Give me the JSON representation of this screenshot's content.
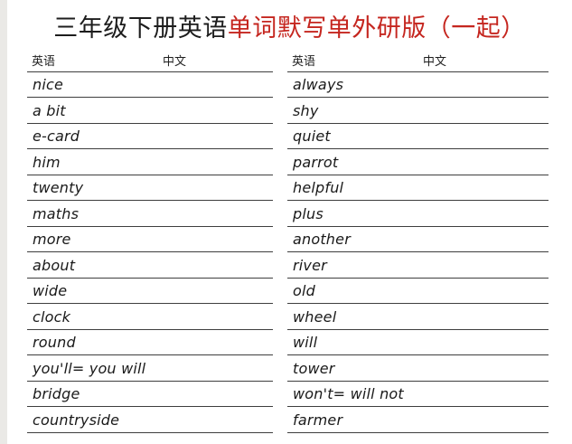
{
  "page": {
    "title": {
      "prefix": "三年级下册英语",
      "highlight": "单词默写单外研版（一起）"
    },
    "colors": {
      "title_highlight": "#c5261f",
      "rule_line": "#3e3e3e",
      "body_text": "#1a1a1a",
      "page_edge": "#eae9e6"
    },
    "columns": [
      {
        "header": {
          "english_label": "英语",
          "chinese_label": "中文"
        },
        "words": [
          "nice",
          "a bit",
          "e-card",
          "him",
          "twenty",
          "maths",
          "more",
          "about",
          "wide",
          "clock",
          "round",
          "you'll= you will",
          "bridge",
          "countryside"
        ]
      },
      {
        "header": {
          "english_label": "英语",
          "chinese_label": "中文"
        },
        "words": [
          "always",
          "shy",
          "quiet",
          "parrot",
          "helpful",
          "plus",
          "another",
          "river",
          "old",
          "wheel",
          "will",
          "tower",
          "won't= will not",
          "farmer"
        ]
      }
    ]
  }
}
